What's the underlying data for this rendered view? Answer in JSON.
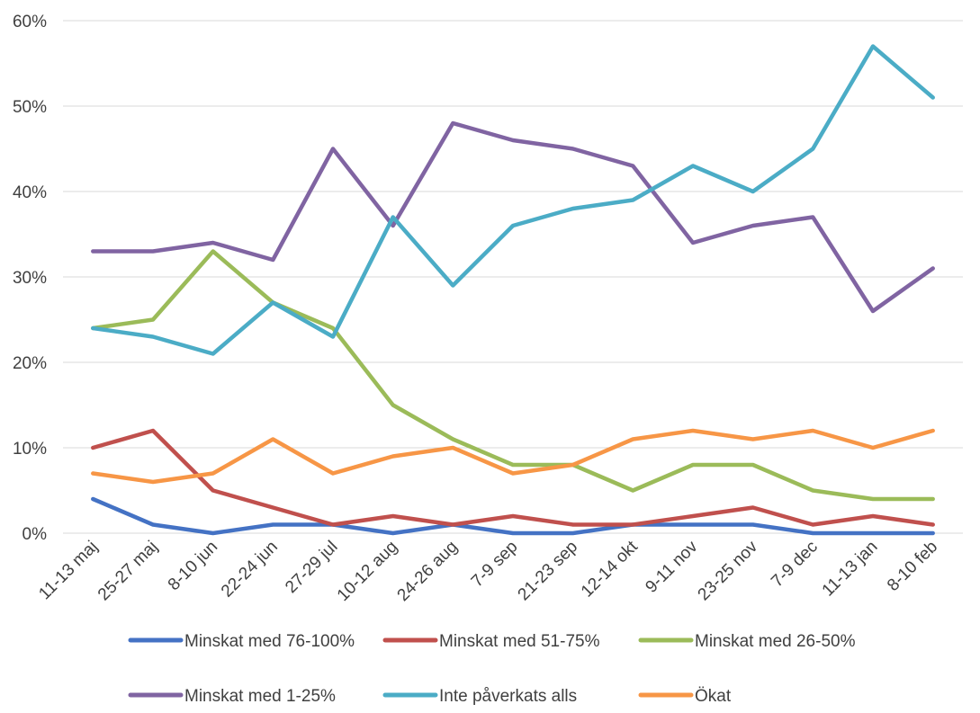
{
  "chart_data": {
    "type": "line",
    "title": "",
    "xlabel": "",
    "ylabel": "",
    "categories": [
      "11-13 maj",
      "25-27 maj",
      "8-10 jun",
      "22-24 jun",
      "27-29 jul",
      "10-12 aug",
      "24-26 aug",
      "7-9 sep",
      "21-23 sep",
      "12-14 okt",
      "9-11 nov",
      "23-25 nov",
      "7-9 dec",
      "11-13 jan",
      "8-10 feb"
    ],
    "ylim": [
      0,
      60
    ],
    "yticks": [
      0,
      10,
      20,
      30,
      40,
      50,
      60
    ],
    "ytick_labels": [
      "0%",
      "10%",
      "20%",
      "30%",
      "40%",
      "50%",
      "60%"
    ],
    "grid": true,
    "legend_position": "bottom",
    "series": [
      {
        "name": "Minskat med 76-100%",
        "color": "#4472C4",
        "values": [
          4,
          1,
          0,
          1,
          1,
          0,
          1,
          0,
          0,
          1,
          1,
          1,
          0,
          0,
          0
        ]
      },
      {
        "name": "Minskat med 51-75%",
        "color": "#C0504D",
        "values": [
          10,
          12,
          5,
          3,
          1,
          2,
          1,
          2,
          1,
          1,
          2,
          3,
          1,
          2,
          1
        ]
      },
      {
        "name": "Minskat med 26-50%",
        "color": "#9BBB59",
        "values": [
          24,
          25,
          33,
          27,
          24,
          15,
          11,
          8,
          8,
          5,
          8,
          8,
          5,
          4,
          4
        ]
      },
      {
        "name": "Minskat med 1-25%",
        "color": "#8064A2",
        "values": [
          33,
          33,
          34,
          32,
          45,
          36,
          48,
          46,
          45,
          43,
          34,
          36,
          37,
          26,
          31
        ]
      },
      {
        "name": "Inte påverkats alls",
        "color": "#4BACC6",
        "values": [
          24,
          23,
          21,
          27,
          23,
          37,
          29,
          36,
          38,
          39,
          43,
          40,
          45,
          57,
          51
        ]
      },
      {
        "name": "Ökat",
        "color": "#F79646",
        "values": [
          7,
          6,
          7,
          11,
          7,
          9,
          10,
          7,
          8,
          11,
          12,
          11,
          12,
          10,
          12
        ]
      }
    ]
  }
}
